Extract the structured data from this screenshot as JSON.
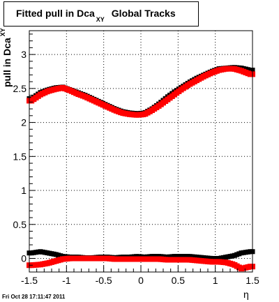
{
  "title": {
    "main": "Fitted pull in Dca",
    "sub": "XY",
    "tail": "Global Tracks"
  },
  "ylabel": {
    "main": "pull in Dca",
    "sub": "XY"
  },
  "xlabel": "η",
  "datestamp": "Fri Oct 28 17:11:47 2011",
  "chart_data": {
    "type": "scatter",
    "xlim": [
      -1.5,
      1.5
    ],
    "ylim": [
      -0.2,
      3.35
    ],
    "xticks": [
      -1.5,
      -1,
      -0.5,
      0,
      0.5,
      1,
      1.5
    ],
    "xtick_labels": [
      "-1.5",
      "-1",
      "-0.5",
      "0",
      "0.5",
      "1",
      "1.5"
    ],
    "yticks": [
      0,
      0.5,
      1,
      1.5,
      2,
      2.5,
      3
    ],
    "ytick_labels": [
      "0",
      "0.5",
      "1",
      "1.5",
      "2",
      "2.5",
      "3"
    ],
    "grid": true,
    "colors": {
      "series1": "#000000",
      "series2": "#ff0000"
    },
    "series": [
      {
        "color": "#000000",
        "x": [
          -1.47,
          -1.35,
          -1.25,
          -1.15,
          -1.05,
          -0.95,
          -0.85,
          -0.75,
          -0.65,
          -0.55,
          -0.45,
          -0.35,
          -0.25,
          -0.15,
          -0.05,
          0.05,
          0.15,
          0.25,
          0.35,
          0.45,
          0.55,
          0.65,
          0.75,
          0.85,
          0.95,
          1.05,
          1.15,
          1.25,
          1.35,
          1.47
        ],
        "y": [
          2.35,
          2.44,
          2.48,
          2.51,
          2.52,
          2.48,
          2.44,
          2.4,
          2.35,
          2.3,
          2.25,
          2.2,
          2.16,
          2.14,
          2.13,
          2.14,
          2.2,
          2.28,
          2.37,
          2.45,
          2.52,
          2.59,
          2.65,
          2.7,
          2.75,
          2.79,
          2.8,
          2.81,
          2.8,
          2.77
        ]
      },
      {
        "color": "#ff0000",
        "x": [
          -1.47,
          -1.35,
          -1.25,
          -1.15,
          -1.05,
          -0.95,
          -0.85,
          -0.75,
          -0.65,
          -0.55,
          -0.45,
          -0.35,
          -0.25,
          -0.15,
          -0.05,
          0.05,
          0.15,
          0.25,
          0.35,
          0.45,
          0.55,
          0.65,
          0.75,
          0.85,
          0.95,
          1.05,
          1.15,
          1.25,
          1.35,
          1.47
        ],
        "y": [
          2.32,
          2.41,
          2.46,
          2.49,
          2.51,
          2.47,
          2.42,
          2.38,
          2.33,
          2.28,
          2.23,
          2.18,
          2.14,
          2.12,
          2.11,
          2.12,
          2.18,
          2.25,
          2.33,
          2.41,
          2.49,
          2.56,
          2.62,
          2.68,
          2.73,
          2.77,
          2.79,
          2.79,
          2.76,
          2.71
        ]
      },
      {
        "color": "#000000",
        "x": [
          -1.47,
          -1.35,
          -1.25,
          -1.15,
          -1.05,
          -0.95,
          -0.85,
          -0.75,
          -0.65,
          -0.55,
          -0.45,
          -0.35,
          -0.25,
          -0.15,
          -0.05,
          0.05,
          0.15,
          0.25,
          0.35,
          0.45,
          0.55,
          0.65,
          0.75,
          0.85,
          0.95,
          1.05,
          1.15,
          1.25,
          1.35,
          1.47
        ],
        "y": [
          0.08,
          0.1,
          0.08,
          0.06,
          0.03,
          0.02,
          0.02,
          0.01,
          0.01,
          0.02,
          0.02,
          0.01,
          0.02,
          0.02,
          0.03,
          0.02,
          0.03,
          0.03,
          0.02,
          0.03,
          0.03,
          0.03,
          0.02,
          0.01,
          0.0,
          0.0,
          0.02,
          0.04,
          0.08,
          0.1
        ]
      },
      {
        "color": "#ff0000",
        "x": [
          -1.47,
          -1.35,
          -1.25,
          -1.15,
          -1.05,
          -0.95,
          -0.85,
          -0.75,
          -0.65,
          -0.55,
          -0.45,
          -0.35,
          -0.25,
          -0.15,
          -0.05,
          0.05,
          0.15,
          0.25,
          0.35,
          0.45,
          0.55,
          0.65,
          0.75,
          0.85,
          0.95,
          1.05,
          1.15,
          1.25,
          1.35,
          1.47
        ],
        "y": [
          -0.1,
          -0.09,
          -0.07,
          -0.04,
          -0.01,
          0.0,
          0.0,
          0.0,
          0.0,
          0.0,
          0.0,
          -0.01,
          -0.01,
          -0.01,
          -0.01,
          -0.01,
          -0.01,
          -0.01,
          -0.02,
          -0.02,
          -0.02,
          -0.02,
          -0.03,
          -0.04,
          -0.05,
          -0.05,
          -0.06,
          -0.09,
          -0.15,
          -0.12
        ]
      }
    ]
  }
}
